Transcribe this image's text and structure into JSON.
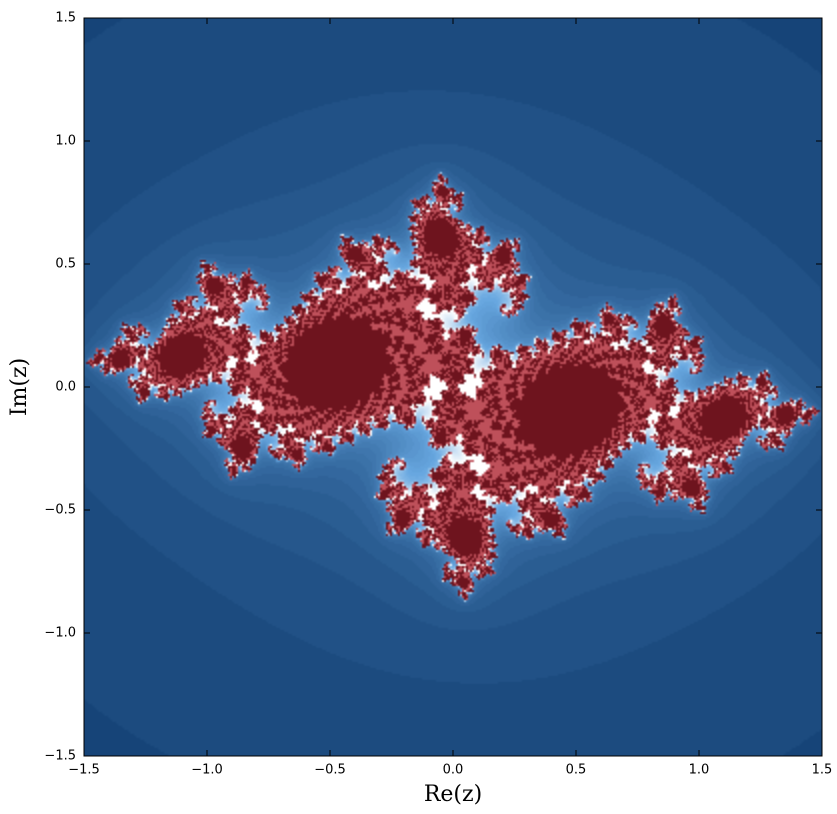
{
  "chart_data": {
    "type": "image",
    "xlabel": "Re(z)",
    "ylabel": "Im(z)",
    "xlim": [
      -1.5,
      1.5
    ],
    "ylim": [
      -1.5,
      1.5
    ],
    "xticks": [
      {
        "value": -1.5,
        "label": "−1.5"
      },
      {
        "value": -1,
        "label": "−1.0"
      },
      {
        "value": -0.5,
        "label": "−0.5"
      },
      {
        "value": 0,
        "label": "0.0"
      },
      0.5,
      {
        "value": 1,
        "label": "1.0"
      },
      1.5
    ],
    "yticks": [
      {
        "value": -1.5,
        "label": "−1.5"
      },
      {
        "value": -1,
        "label": "−1.0"
      },
      {
        "value": -0.5,
        "label": "−0.5"
      },
      {
        "value": 0,
        "label": "0.0"
      },
      0.5,
      {
        "value": 1,
        "label": "1.0"
      },
      1.5
    ]
  }
}
